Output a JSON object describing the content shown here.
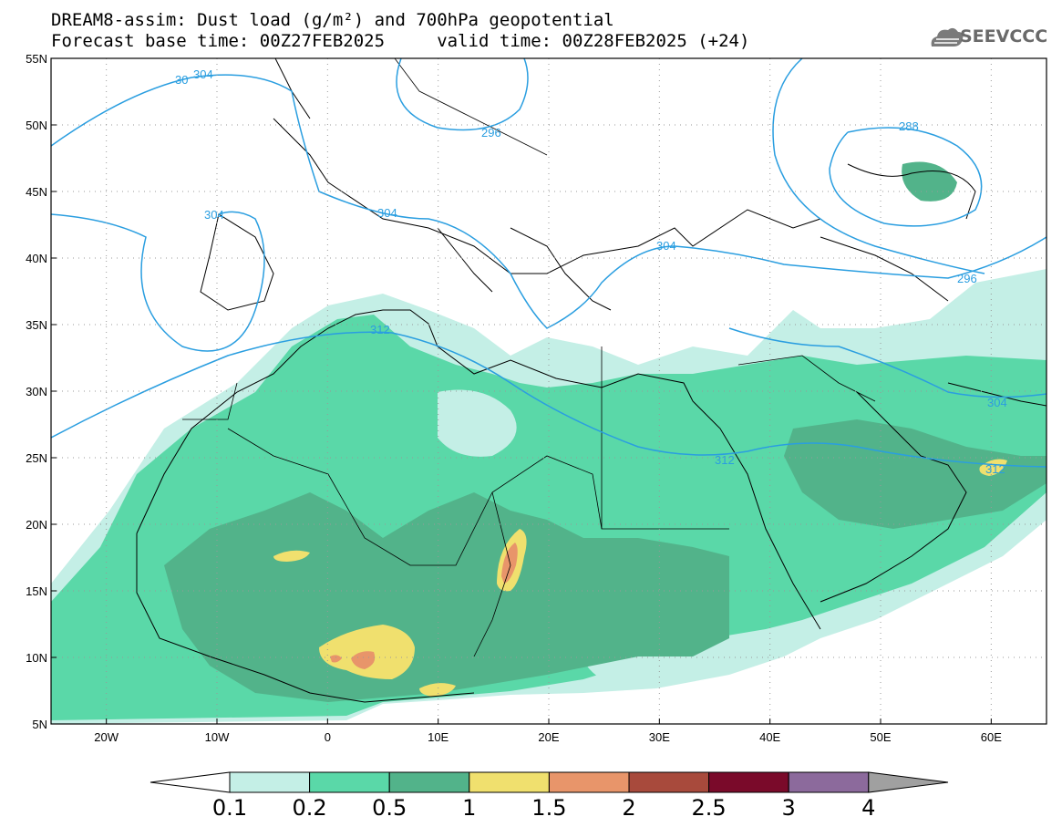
{
  "header": {
    "line1": "DREAM8-assim: Dust load (g/m²) and 700hPa geopotential",
    "line2": "Forecast base time: 00Z27FEB2025     valid time: 00Z28FEB2025 (+24)"
  },
  "logo": {
    "text": "SEEVCCC",
    "icon": "cloud-icon"
  },
  "map": {
    "lat_ticks": [
      "55N",
      "50N",
      "45N",
      "40N",
      "35N",
      "30N",
      "25N",
      "20N",
      "15N",
      "10N",
      "5N"
    ],
    "lon_ticks": [
      "20W",
      "10W",
      "0",
      "10E",
      "20E",
      "30E",
      "40E",
      "50E",
      "60E"
    ],
    "lon_range": [
      -25,
      65
    ],
    "lat_range": [
      5,
      55
    ],
    "contour_labels": [
      "30",
      "304",
      "304",
      "296",
      "304",
      "304",
      "288",
      "312",
      "296",
      "304",
      "312",
      "312"
    ]
  },
  "colorbar": {
    "labels": [
      "0.1",
      "0.2",
      "0.5",
      "1",
      "1.5",
      "2",
      "2.5",
      "3",
      "4"
    ],
    "colors": [
      "#c4efe6",
      "#5ad8a8",
      "#52b38a",
      "#f0e06e",
      "#e8956a",
      "#a84a3c",
      "#7a0a2a",
      "#8c6a9c"
    ],
    "under_color": "#ffffff",
    "over_color": "#a0a0a0"
  },
  "colors": {
    "contour": "#2a9ee0",
    "coast": "#000000"
  }
}
